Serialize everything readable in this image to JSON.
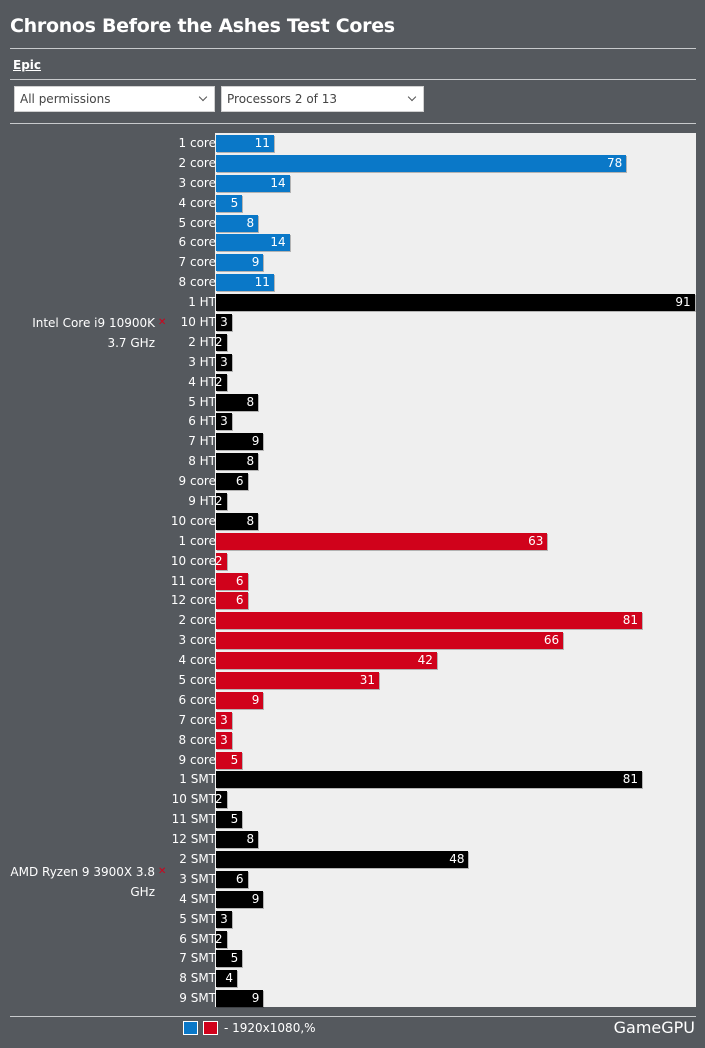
{
  "header": {
    "title": "Chronos Before the Ashes Test Cores"
  },
  "tabs": {
    "active": "Epic"
  },
  "filters": {
    "permissions": {
      "selected": "All permissions"
    },
    "processors": {
      "selected": "Processors 2 of 13"
    }
  },
  "legend": {
    "text": "- 1920x1080,%"
  },
  "brand": {
    "name": "GameGPU"
  },
  "colors": {
    "intel_core": "#0a78c8",
    "amd_core": "#d0021b",
    "thread": "#000000",
    "plot_bg": "#efefef"
  },
  "chart_data": {
    "type": "bar",
    "orientation": "horizontal",
    "title": "Chronos Before the Ashes Test Cores",
    "xlim": [
      0,
      100
    ],
    "groups": [
      {
        "name": "Intel Core i9 10900K 3.7 GHz",
        "bars": [
          {
            "label": "1 core",
            "value": 11,
            "kind": "core"
          },
          {
            "label": "2 core",
            "value": 78,
            "kind": "core"
          },
          {
            "label": "3 core",
            "value": 14,
            "kind": "core"
          },
          {
            "label": "4 core",
            "value": 5,
            "kind": "core"
          },
          {
            "label": "5 core",
            "value": 8,
            "kind": "core"
          },
          {
            "label": "6 core",
            "value": 14,
            "kind": "core"
          },
          {
            "label": "7 core",
            "value": 9,
            "kind": "core"
          },
          {
            "label": "8 core",
            "value": 11,
            "kind": "core"
          },
          {
            "label": "1 HT",
            "value": 91,
            "kind": "thread"
          },
          {
            "label": "10 HT",
            "value": 3,
            "kind": "thread"
          },
          {
            "label": "2 HT",
            "value": 2,
            "kind": "thread"
          },
          {
            "label": "3 HT",
            "value": 3,
            "kind": "thread"
          },
          {
            "label": "4 HT",
            "value": 2,
            "kind": "thread"
          },
          {
            "label": "5 HT",
            "value": 8,
            "kind": "thread"
          },
          {
            "label": "6 HT",
            "value": 3,
            "kind": "thread"
          },
          {
            "label": "7 HT",
            "value": 9,
            "kind": "thread"
          },
          {
            "label": "8 HT",
            "value": 8,
            "kind": "thread"
          },
          {
            "label": "9 core",
            "value": 6,
            "kind": "thread"
          },
          {
            "label": "9 HT",
            "value": 2,
            "kind": "thread"
          },
          {
            "label": "10 core",
            "value": 8,
            "kind": "thread"
          }
        ]
      },
      {
        "name": "AMD Ryzen 9 3900X 3.8 GHz",
        "bars": [
          {
            "label": "1 core",
            "value": 63,
            "kind": "core"
          },
          {
            "label": "10 core",
            "value": 2,
            "kind": "core"
          },
          {
            "label": "11 core",
            "value": 6,
            "kind": "core"
          },
          {
            "label": "12 core",
            "value": 6,
            "kind": "core"
          },
          {
            "label": "2 core",
            "value": 81,
            "kind": "core"
          },
          {
            "label": "3 core",
            "value": 66,
            "kind": "core"
          },
          {
            "label": "4 core",
            "value": 42,
            "kind": "core"
          },
          {
            "label": "5 core",
            "value": 31,
            "kind": "core"
          },
          {
            "label": "6 core",
            "value": 9,
            "kind": "core"
          },
          {
            "label": "7 core",
            "value": 3,
            "kind": "core"
          },
          {
            "label": "8 core",
            "value": 3,
            "kind": "core"
          },
          {
            "label": "9 core",
            "value": 5,
            "kind": "core"
          },
          {
            "label": "1 SMT",
            "value": 81,
            "kind": "thread"
          },
          {
            "label": "10 SMT",
            "value": 2,
            "kind": "thread"
          },
          {
            "label": "11 SMT",
            "value": 5,
            "kind": "thread"
          },
          {
            "label": "12 SMT",
            "value": 8,
            "kind": "thread"
          },
          {
            "label": "2 SMT",
            "value": 48,
            "kind": "thread"
          },
          {
            "label": "3 SMT",
            "value": 6,
            "kind": "thread"
          },
          {
            "label": "4 SMT",
            "value": 9,
            "kind": "thread"
          },
          {
            "label": "5 SMT",
            "value": 3,
            "kind": "thread"
          },
          {
            "label": "6 SMT",
            "value": 2,
            "kind": "thread"
          },
          {
            "label": "7 SMT",
            "value": 5,
            "kind": "thread"
          },
          {
            "label": "8 SMT",
            "value": 4,
            "kind": "thread"
          },
          {
            "label": "9 SMT",
            "value": 9,
            "kind": "thread"
          }
        ]
      }
    ]
  }
}
